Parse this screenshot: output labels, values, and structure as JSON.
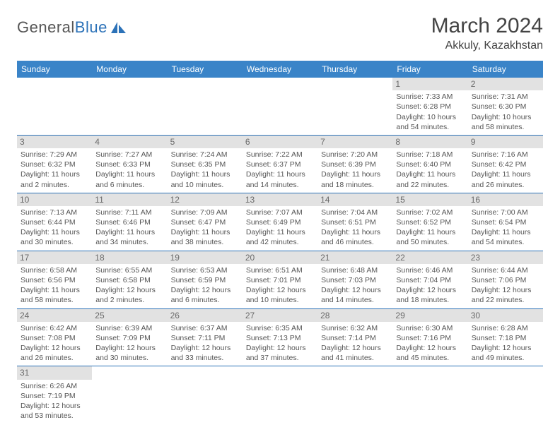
{
  "logo": {
    "part1": "General",
    "part2": "Blue"
  },
  "title": "March 2024",
  "location": "Akkuly, Kazakhstan",
  "colors": {
    "header_bg": "#3a84c8",
    "header_text": "#ffffff",
    "accent": "#2c72b8",
    "daynum_bg": "#e2e2e2",
    "daynum_text": "#6a6a6a",
    "body_text": "#555555"
  },
  "weekdays": [
    "Sunday",
    "Monday",
    "Tuesday",
    "Wednesday",
    "Thursday",
    "Friday",
    "Saturday"
  ],
  "weeks": [
    [
      null,
      null,
      null,
      null,
      null,
      {
        "n": "1",
        "sr": "Sunrise: 7:33 AM",
        "ss": "Sunset: 6:28 PM",
        "d1": "Daylight: 10 hours",
        "d2": "and 54 minutes."
      },
      {
        "n": "2",
        "sr": "Sunrise: 7:31 AM",
        "ss": "Sunset: 6:30 PM",
        "d1": "Daylight: 10 hours",
        "d2": "and 58 minutes."
      }
    ],
    [
      {
        "n": "3",
        "sr": "Sunrise: 7:29 AM",
        "ss": "Sunset: 6:32 PM",
        "d1": "Daylight: 11 hours",
        "d2": "and 2 minutes."
      },
      {
        "n": "4",
        "sr": "Sunrise: 7:27 AM",
        "ss": "Sunset: 6:33 PM",
        "d1": "Daylight: 11 hours",
        "d2": "and 6 minutes."
      },
      {
        "n": "5",
        "sr": "Sunrise: 7:24 AM",
        "ss": "Sunset: 6:35 PM",
        "d1": "Daylight: 11 hours",
        "d2": "and 10 minutes."
      },
      {
        "n": "6",
        "sr": "Sunrise: 7:22 AM",
        "ss": "Sunset: 6:37 PM",
        "d1": "Daylight: 11 hours",
        "d2": "and 14 minutes."
      },
      {
        "n": "7",
        "sr": "Sunrise: 7:20 AM",
        "ss": "Sunset: 6:39 PM",
        "d1": "Daylight: 11 hours",
        "d2": "and 18 minutes."
      },
      {
        "n": "8",
        "sr": "Sunrise: 7:18 AM",
        "ss": "Sunset: 6:40 PM",
        "d1": "Daylight: 11 hours",
        "d2": "and 22 minutes."
      },
      {
        "n": "9",
        "sr": "Sunrise: 7:16 AM",
        "ss": "Sunset: 6:42 PM",
        "d1": "Daylight: 11 hours",
        "d2": "and 26 minutes."
      }
    ],
    [
      {
        "n": "10",
        "sr": "Sunrise: 7:13 AM",
        "ss": "Sunset: 6:44 PM",
        "d1": "Daylight: 11 hours",
        "d2": "and 30 minutes."
      },
      {
        "n": "11",
        "sr": "Sunrise: 7:11 AM",
        "ss": "Sunset: 6:46 PM",
        "d1": "Daylight: 11 hours",
        "d2": "and 34 minutes."
      },
      {
        "n": "12",
        "sr": "Sunrise: 7:09 AM",
        "ss": "Sunset: 6:47 PM",
        "d1": "Daylight: 11 hours",
        "d2": "and 38 minutes."
      },
      {
        "n": "13",
        "sr": "Sunrise: 7:07 AM",
        "ss": "Sunset: 6:49 PM",
        "d1": "Daylight: 11 hours",
        "d2": "and 42 minutes."
      },
      {
        "n": "14",
        "sr": "Sunrise: 7:04 AM",
        "ss": "Sunset: 6:51 PM",
        "d1": "Daylight: 11 hours",
        "d2": "and 46 minutes."
      },
      {
        "n": "15",
        "sr": "Sunrise: 7:02 AM",
        "ss": "Sunset: 6:52 PM",
        "d1": "Daylight: 11 hours",
        "d2": "and 50 minutes."
      },
      {
        "n": "16",
        "sr": "Sunrise: 7:00 AM",
        "ss": "Sunset: 6:54 PM",
        "d1": "Daylight: 11 hours",
        "d2": "and 54 minutes."
      }
    ],
    [
      {
        "n": "17",
        "sr": "Sunrise: 6:58 AM",
        "ss": "Sunset: 6:56 PM",
        "d1": "Daylight: 11 hours",
        "d2": "and 58 minutes."
      },
      {
        "n": "18",
        "sr": "Sunrise: 6:55 AM",
        "ss": "Sunset: 6:58 PM",
        "d1": "Daylight: 12 hours",
        "d2": "and 2 minutes."
      },
      {
        "n": "19",
        "sr": "Sunrise: 6:53 AM",
        "ss": "Sunset: 6:59 PM",
        "d1": "Daylight: 12 hours",
        "d2": "and 6 minutes."
      },
      {
        "n": "20",
        "sr": "Sunrise: 6:51 AM",
        "ss": "Sunset: 7:01 PM",
        "d1": "Daylight: 12 hours",
        "d2": "and 10 minutes."
      },
      {
        "n": "21",
        "sr": "Sunrise: 6:48 AM",
        "ss": "Sunset: 7:03 PM",
        "d1": "Daylight: 12 hours",
        "d2": "and 14 minutes."
      },
      {
        "n": "22",
        "sr": "Sunrise: 6:46 AM",
        "ss": "Sunset: 7:04 PM",
        "d1": "Daylight: 12 hours",
        "d2": "and 18 minutes."
      },
      {
        "n": "23",
        "sr": "Sunrise: 6:44 AM",
        "ss": "Sunset: 7:06 PM",
        "d1": "Daylight: 12 hours",
        "d2": "and 22 minutes."
      }
    ],
    [
      {
        "n": "24",
        "sr": "Sunrise: 6:42 AM",
        "ss": "Sunset: 7:08 PM",
        "d1": "Daylight: 12 hours",
        "d2": "and 26 minutes."
      },
      {
        "n": "25",
        "sr": "Sunrise: 6:39 AM",
        "ss": "Sunset: 7:09 PM",
        "d1": "Daylight: 12 hours",
        "d2": "and 30 minutes."
      },
      {
        "n": "26",
        "sr": "Sunrise: 6:37 AM",
        "ss": "Sunset: 7:11 PM",
        "d1": "Daylight: 12 hours",
        "d2": "and 33 minutes."
      },
      {
        "n": "27",
        "sr": "Sunrise: 6:35 AM",
        "ss": "Sunset: 7:13 PM",
        "d1": "Daylight: 12 hours",
        "d2": "and 37 minutes."
      },
      {
        "n": "28",
        "sr": "Sunrise: 6:32 AM",
        "ss": "Sunset: 7:14 PM",
        "d1": "Daylight: 12 hours",
        "d2": "and 41 minutes."
      },
      {
        "n": "29",
        "sr": "Sunrise: 6:30 AM",
        "ss": "Sunset: 7:16 PM",
        "d1": "Daylight: 12 hours",
        "d2": "and 45 minutes."
      },
      {
        "n": "30",
        "sr": "Sunrise: 6:28 AM",
        "ss": "Sunset: 7:18 PM",
        "d1": "Daylight: 12 hours",
        "d2": "and 49 minutes."
      }
    ],
    [
      {
        "n": "31",
        "sr": "Sunrise: 6:26 AM",
        "ss": "Sunset: 7:19 PM",
        "d1": "Daylight: 12 hours",
        "d2": "and 53 minutes."
      },
      null,
      null,
      null,
      null,
      null,
      null
    ]
  ]
}
